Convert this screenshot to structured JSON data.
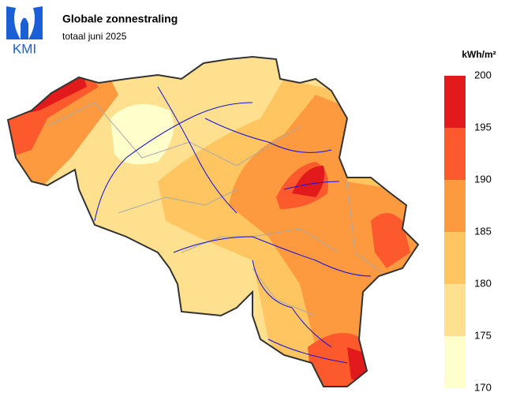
{
  "header": {
    "logo": "KMI",
    "title": "Globale zonnestraling",
    "subtitle": "totaal juni 2025"
  },
  "legend": {
    "unit": "kWh/m²",
    "ticks": [
      170,
      175,
      180,
      185,
      190,
      195,
      200
    ],
    "colors": [
      "#ffffcc",
      "#fee08f",
      "#fec561",
      "#fd9a40",
      "#fc5a2d",
      "#e31a1c"
    ]
  }
}
